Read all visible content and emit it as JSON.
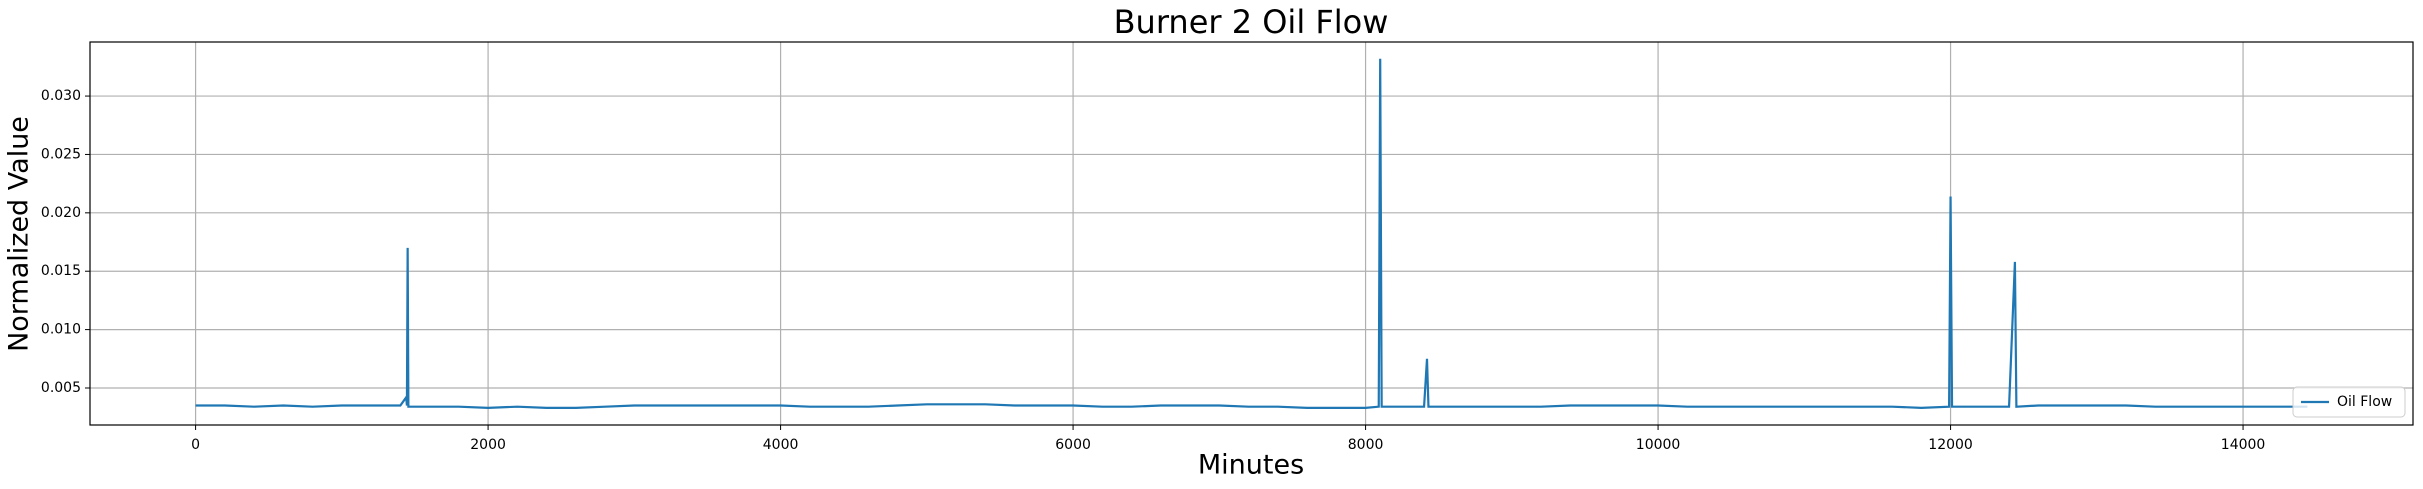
{
  "chart_data": {
    "type": "line",
    "title": "Burner 2 Oil Flow",
    "x_label": "Minutes",
    "y_label": "Normalized Value",
    "x": [
      0,
      200,
      400,
      600,
      800,
      1000,
      1200,
      1400,
      1440,
      1445,
      1450,
      1455,
      1600,
      1800,
      2000,
      2200,
      2400,
      2600,
      2800,
      3000,
      3200,
      3400,
      3600,
      3800,
      4000,
      4200,
      4400,
      4600,
      4800,
      5000,
      5200,
      5400,
      5600,
      5800,
      6000,
      6200,
      6400,
      6600,
      6800,
      7000,
      7200,
      7400,
      7600,
      7800,
      8000,
      8090,
      8100,
      8110,
      8200,
      8400,
      8420,
      8430,
      8600,
      8800,
      9000,
      9200,
      9400,
      9600,
      9800,
      10000,
      10200,
      10400,
      10600,
      10800,
      11000,
      11200,
      11400,
      11600,
      11800,
      11990,
      12000,
      12010,
      12200,
      12400,
      12440,
      12450,
      12600,
      12800,
      13000,
      13200,
      13400,
      13600,
      13800,
      14000,
      14200,
      14440
    ],
    "series": [
      {
        "name": "Oil Flow",
        "color": "#1f77b4",
        "values": [
          0.0035,
          0.0035,
          0.0034,
          0.0035,
          0.0034,
          0.0035,
          0.0035,
          0.0035,
          0.0042,
          0.0035,
          0.017,
          0.0034,
          0.0034,
          0.0034,
          0.0033,
          0.0034,
          0.0033,
          0.0033,
          0.0034,
          0.0035,
          0.0035,
          0.0035,
          0.0035,
          0.0035,
          0.0035,
          0.0034,
          0.0034,
          0.0034,
          0.0035,
          0.0036,
          0.0036,
          0.0036,
          0.0035,
          0.0035,
          0.0035,
          0.0034,
          0.0034,
          0.0035,
          0.0035,
          0.0035,
          0.0034,
          0.0034,
          0.0033,
          0.0033,
          0.0033,
          0.0034,
          0.0332,
          0.0034,
          0.0034,
          0.0034,
          0.0075,
          0.0034,
          0.0034,
          0.0034,
          0.0034,
          0.0034,
          0.0035,
          0.0035,
          0.0035,
          0.0035,
          0.0034,
          0.0034,
          0.0034,
          0.0034,
          0.0034,
          0.0034,
          0.0034,
          0.0034,
          0.0033,
          0.0034,
          0.0214,
          0.0034,
          0.0034,
          0.0034,
          0.0158,
          0.0034,
          0.0035,
          0.0035,
          0.0035,
          0.0035,
          0.0034,
          0.0034,
          0.0034,
          0.0034,
          0.0034,
          0.0034
        ]
      }
    ],
    "xlim": [
      -722,
      15162
    ],
    "ylim": [
      0.00183,
      0.03463
    ],
    "xticks": [
      0,
      2000,
      4000,
      6000,
      8000,
      10000,
      12000,
      14000
    ],
    "yticks": [
      0.005,
      {
        "value": 0.01,
        "label": "0.010"
      },
      0.015,
      {
        "value": 0.02,
        "label": "0.020"
      },
      0.025,
      {
        "value": 0.03,
        "label": "0.030"
      }
    ],
    "grid": true,
    "legend": "lower right"
  }
}
